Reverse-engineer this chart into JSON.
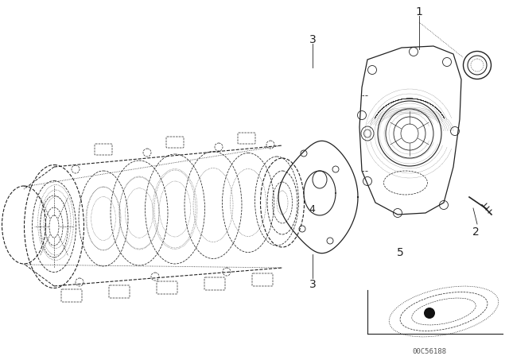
{
  "background_color": "#ffffff",
  "line_color": "#222222",
  "watermark": "00C56188",
  "fig_width": 6.4,
  "fig_height": 4.48,
  "dpi": 100
}
